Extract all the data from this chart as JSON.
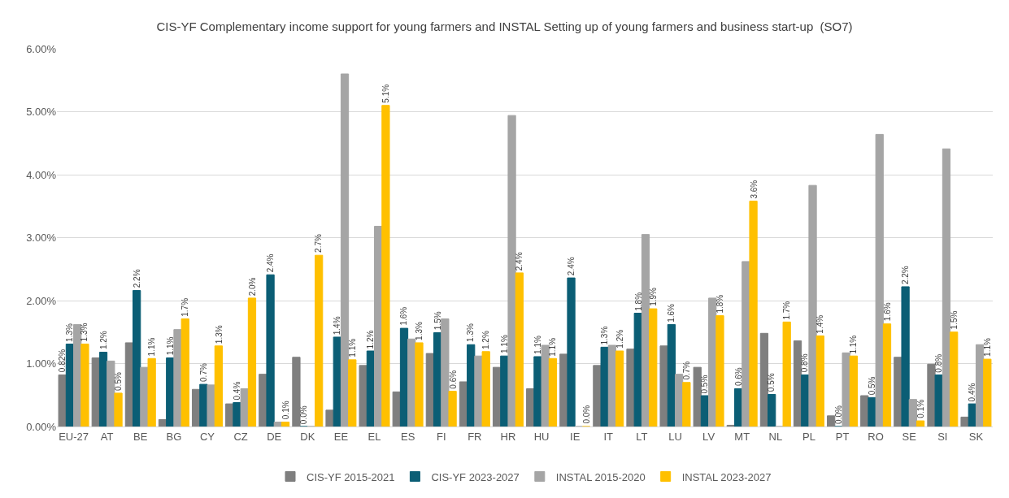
{
  "chart_data": {
    "type": "bar",
    "title": "CIS-YF Complementary income support for young farmers and INSTAL Setting up of young farmers and business start-up  (SO7)",
    "categories": [
      "EU-27",
      "AT",
      "BE",
      "BG",
      "CY",
      "CZ",
      "DE",
      "DK",
      "EE",
      "EL",
      "ES",
      "FI",
      "FR",
      "HR",
      "HU",
      "IE",
      "IT",
      "LT",
      "LU",
      "LV",
      "MT",
      "NL",
      "PL",
      "PT",
      "RO",
      "SE",
      "SI",
      "SK"
    ],
    "series": [
      {
        "name": "CIS-YF 2015-2021",
        "color": "#7f7f7f",
        "values": [
          0.82,
          1.09,
          1.33,
          0.11,
          0.59,
          0.36,
          0.83,
          1.1,
          0.26,
          0.97,
          0.55,
          1.16,
          0.71,
          0.94,
          0.6,
          1.15,
          0.97,
          1.23,
          1.28,
          0.94,
          0.02,
          1.48,
          1.36,
          0.17,
          0.49,
          1.1,
          0.99,
          0.15
        ],
        "value_labels": [
          "0.82%",
          null,
          null,
          null,
          null,
          null,
          null,
          null,
          null,
          null,
          null,
          null,
          null,
          null,
          null,
          null,
          null,
          null,
          null,
          null,
          null,
          null,
          null,
          null,
          null,
          null,
          null,
          null
        ]
      },
      {
        "name": "CIS-YF 2023-2027",
        "color": "#0b5e75",
        "values": [
          1.31,
          1.18,
          2.16,
          1.09,
          0.67,
          0.38,
          2.41,
          0,
          1.42,
          1.2,
          1.56,
          1.49,
          1.3,
          1.12,
          1.11,
          2.36,
          1.26,
          1.8,
          1.62,
          0.49,
          0.6,
          0.51,
          0.82,
          0,
          0.46,
          2.22,
          0.82,
          0.36
        ],
        "value_labels": [
          "1.3%",
          "1.2%",
          "2.2%",
          "1.1%",
          "0.7%",
          "0.4%",
          "2.4%",
          "0.0%",
          "1.4%",
          "1.2%",
          "1.6%",
          "1.5%",
          "1.3%",
          "1.1%",
          "1.1%",
          "2.4%",
          "1.3%",
          "1.8%",
          "1.6%",
          "0.5%",
          "0.6%",
          "0.5%",
          "0.8%",
          "0.0%",
          "0.5%",
          "2.2%",
          "0.8%",
          "0.4%"
        ]
      },
      {
        "name": "INSTAL 2015-2020",
        "color": "#a5a5a5",
        "values": [
          1.62,
          1.04,
          0.94,
          1.54,
          0.66,
          0.6,
          0.07,
          0,
          5.6,
          3.18,
          1.39,
          1.71,
          1.12,
          4.94,
          1.29,
          0,
          1.29,
          3.05,
          0.83,
          2.04,
          2.62,
          0,
          3.83,
          1.17,
          4.64,
          0.43,
          4.41,
          1.3
        ]
      },
      {
        "name": "INSTAL 2023-2027",
        "color": "#ffc000",
        "values": [
          1.31,
          0.53,
          1.08,
          1.71,
          1.28,
          2.04,
          0.07,
          2.72,
          1.06,
          5.1,
          1.33,
          0.56,
          1.19,
          2.44,
          1.08,
          0,
          1.2,
          1.87,
          0.7,
          1.76,
          3.58,
          1.66,
          1.44,
          1.12,
          1.63,
          0.09,
          1.5,
          1.07
        ],
        "value_labels": [
          "1.3%",
          "0.5%",
          "1.1%",
          "1.7%",
          "1.3%",
          "2.0%",
          "0.1%",
          "2.7%",
          "1.1%",
          "5.1%",
          "1.3%",
          "0.6%",
          "1.2%",
          "2.4%",
          "1.1%",
          "0.0%",
          "1.2%",
          "1.9%",
          "0.7%",
          "1.8%",
          "3.6%",
          "1.7%",
          "1.4%",
          "1.1%",
          "1.6%",
          "0.1%",
          "1.5%",
          "1.1%"
        ]
      }
    ],
    "ylim": [
      0,
      6
    ],
    "yticks": [
      {
        "value": 0,
        "label": "0.00%"
      },
      {
        "value": 1,
        "label": "1.00%"
      },
      {
        "value": 2,
        "label": "2.00%"
      },
      {
        "value": 3,
        "label": "3.00%"
      },
      {
        "value": 4,
        "label": "4.00%"
      },
      {
        "value": 5,
        "label": "5.00%"
      },
      {
        "value": 6,
        "label": "6.00%"
      }
    ],
    "grid": "y",
    "legend": "bottom"
  }
}
